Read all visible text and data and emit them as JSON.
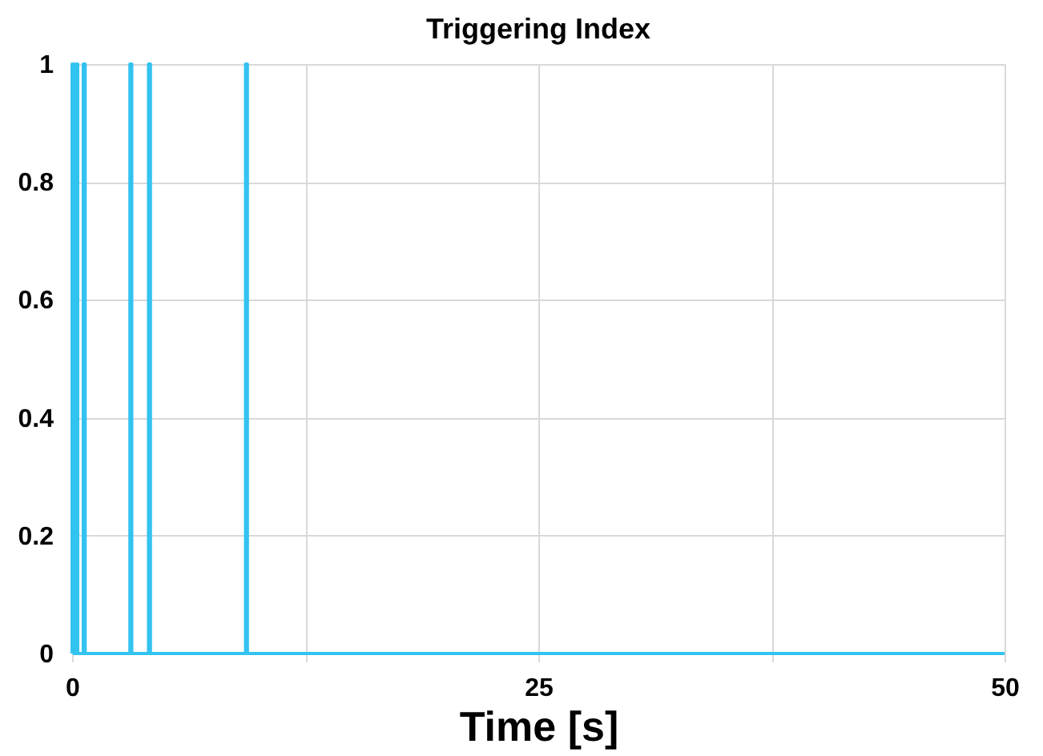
{
  "chart_data": {
    "type": "line",
    "title": "Triggering Index",
    "xlabel": "Time [s]",
    "x": [
      0,
      0,
      0.1,
      0.1,
      0.2,
      0.2,
      0.3,
      0.3,
      0.6,
      0.6,
      0.7,
      0.7,
      3.1,
      3.1,
      3.2,
      3.2,
      4.1,
      4.1,
      4.2,
      4.2,
      9.3,
      9.3,
      9.4,
      9.4,
      50
    ],
    "series": [
      {
        "color": "#33c3f0",
        "values": [
          0,
          1,
          1,
          0,
          0,
          1,
          1,
          0,
          0,
          1,
          1,
          0,
          0,
          1,
          1,
          0,
          0,
          1,
          1,
          0,
          0,
          1,
          1,
          0,
          0
        ]
      }
    ],
    "xlim": [
      0,
      50
    ],
    "xticks": [
      0,
      {
        "value": 12.5,
        "label": null
      },
      25,
      {
        "value": 37.5,
        "label": null
      },
      50
    ],
    "ylim": [
      0,
      1
    ],
    "yticks": [
      0,
      0.2,
      0.4,
      0.6,
      0.8,
      1
    ],
    "grid": true,
    "marker": "none",
    "line_style": "solid"
  }
}
